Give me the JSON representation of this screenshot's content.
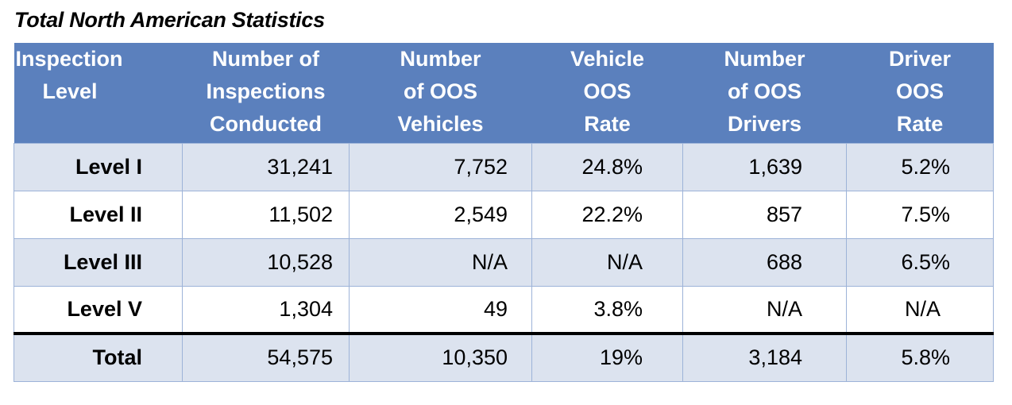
{
  "title": "Total North American Statistics",
  "columns": [
    [
      "Inspection",
      "Level"
    ],
    [
      "Number of",
      "Inspections",
      "Conducted"
    ],
    [
      "Number",
      "of OOS",
      "Vehicles"
    ],
    [
      "Vehicle",
      "OOS",
      "Rate"
    ],
    [
      "Number",
      "of OOS",
      "Drivers"
    ],
    [
      "Driver",
      "OOS",
      "Rate"
    ]
  ],
  "rows": [
    {
      "level": "Level I",
      "inspections": "31,241",
      "oos_vehicles": "7,752",
      "vehicle_oos_rate": "24.8%",
      "oos_drivers": "1,639",
      "driver_oos_rate": "5.2%"
    },
    {
      "level": "Level II",
      "inspections": "11,502",
      "oos_vehicles": "2,549",
      "vehicle_oos_rate": "22.2%",
      "oos_drivers": "857",
      "driver_oos_rate": "7.5%"
    },
    {
      "level": "Level III",
      "inspections": "10,528",
      "oos_vehicles": "N/A",
      "vehicle_oos_rate": "N/A",
      "oos_drivers": "688",
      "driver_oos_rate": "6.5%"
    },
    {
      "level": "Level V",
      "inspections": "1,304",
      "oos_vehicles": "49",
      "vehicle_oos_rate": "3.8%",
      "oos_drivers": "N/A",
      "driver_oos_rate": "N/A"
    }
  ],
  "total": {
    "level": "Total",
    "inspections": "54,575",
    "oos_vehicles": "10,350",
    "vehicle_oos_rate": "19%",
    "oos_drivers": "3,184",
    "driver_oos_rate": "5.8%"
  },
  "colors": {
    "header_bg": "#5b80bd",
    "header_text": "#ffffff",
    "row_shade": "#dce3ef",
    "row_plain": "#ffffff",
    "grid": "#9db3d8",
    "total_rule": "#000000"
  }
}
